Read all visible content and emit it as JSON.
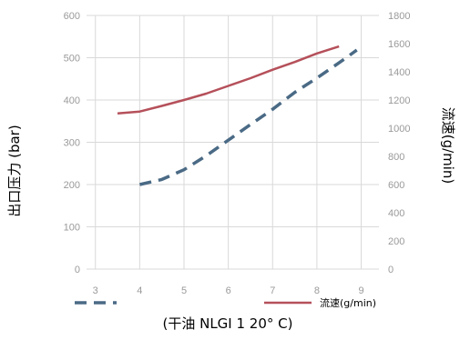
{
  "chart_data": {
    "type": "line",
    "x_ticks": [
      "3",
      "4",
      "5",
      "6",
      "7",
      "8",
      "9"
    ],
    "xlim": [
      2.8,
      9.4
    ],
    "xlabel": "(干油 NLGI 1 20° C)",
    "ylabel_left": "出口压力 (bar)",
    "ylabel_right": "流速(g/min)",
    "ylim_left": [
      0,
      600
    ],
    "ylim_right": [
      0,
      1800
    ],
    "y_ticks_left": [
      "0",
      "100",
      "200",
      "300",
      "400",
      "500",
      "600"
    ],
    "y_ticks_right": [
      "0",
      "200",
      "400",
      "600",
      "800",
      "1000",
      "1200",
      "1400",
      "1600",
      "1800"
    ],
    "grid": true,
    "legend_position": "bottom",
    "series": [
      {
        "name": "",
        "axis": "left",
        "style": "dashed",
        "color": "#4a6a85",
        "x": [
          4.0,
          4.5,
          5.0,
          5.5,
          6.0,
          6.5,
          7.0,
          7.5,
          8.0,
          8.5,
          8.9
        ],
        "y": [
          200,
          212,
          235,
          268,
          305,
          342,
          378,
          418,
          452,
          488,
          518
        ]
      },
      {
        "name": "流速(g/min)",
        "axis": "right",
        "style": "solid",
        "color": "#b5505a",
        "x": [
          3.5,
          4.0,
          4.5,
          5.0,
          5.5,
          6.0,
          6.5,
          7.0,
          7.5,
          8.0,
          8.5
        ],
        "y": [
          1105,
          1118,
          1158,
          1200,
          1245,
          1300,
          1355,
          1415,
          1470,
          1530,
          1580
        ]
      }
    ]
  }
}
